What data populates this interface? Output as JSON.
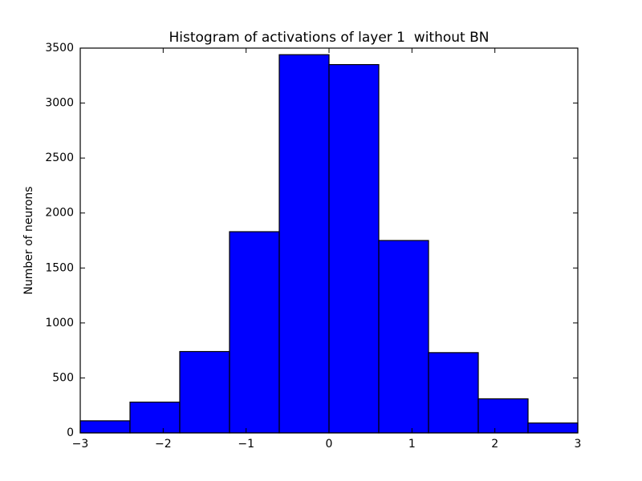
{
  "chart_data": {
    "type": "histogram",
    "title": "Histogram of activations of layer 1  without BN",
    "y_label": "Number of neurons",
    "bins": [
      -3,
      -2.4,
      -1.8,
      -1.2,
      -0.6,
      0,
      0.6,
      1.2,
      1.8,
      2.4,
      3
    ],
    "counts": [
      110,
      280,
      740,
      1830,
      3440,
      3350,
      1750,
      730,
      310,
      90
    ],
    "color": "#0000ff",
    "edgecolor": "#000000",
    "xlim": [
      -3,
      3
    ],
    "xticks": [
      {
        "value": -3,
        "label": "−3"
      },
      {
        "value": -2,
        "label": "−2"
      },
      {
        "value": -1,
        "label": "−1"
      },
      0,
      1,
      2,
      3
    ],
    "ylim": [
      0,
      3500
    ],
    "yticks": [
      0,
      500,
      1000,
      1500,
      2000,
      2500,
      3000,
      3500
    ]
  }
}
